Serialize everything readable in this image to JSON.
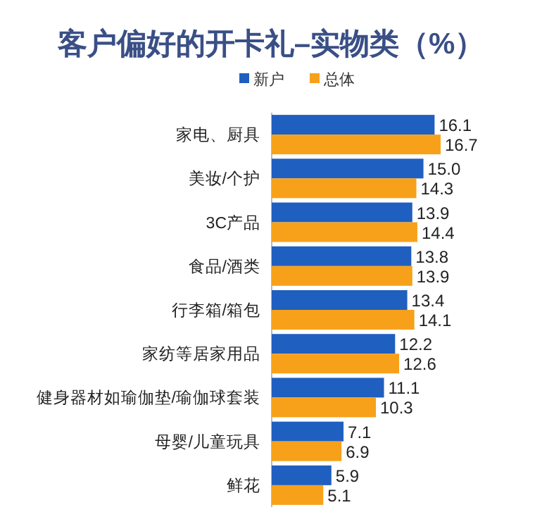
{
  "chart_data": {
    "type": "bar",
    "orientation": "horizontal",
    "title": "客户偏好的开卡礼–实物类（%）",
    "categories": [
      "家电、厨具",
      "美妆/个护",
      "3C产品",
      "食品/酒类",
      "行李箱/箱包",
      "家纺等居家用品",
      "健身器材如瑜伽垫/瑜伽球套装",
      "母婴/儿童玩具",
      "鲜花"
    ],
    "series": [
      {
        "name": "新户",
        "color": "#1f5fbf",
        "values": [
          16.1,
          15.0,
          13.9,
          13.8,
          13.4,
          12.2,
          11.1,
          7.1,
          5.9
        ],
        "value_labels": [
          "16.1",
          "15.0",
          "13.9",
          "13.8",
          "13.4",
          "12.2",
          "11.1",
          "7.1",
          "5.9"
        ]
      },
      {
        "name": "总体",
        "color": "#f7a11a",
        "values": [
          16.7,
          14.3,
          14.4,
          13.9,
          14.1,
          12.6,
          10.3,
          6.9,
          5.1
        ],
        "value_labels": [
          "16.7",
          "14.3",
          "14.4",
          "13.9",
          "14.1",
          "12.6",
          "10.3",
          "6.9",
          "5.1"
        ]
      }
    ],
    "legend": "top"
  }
}
